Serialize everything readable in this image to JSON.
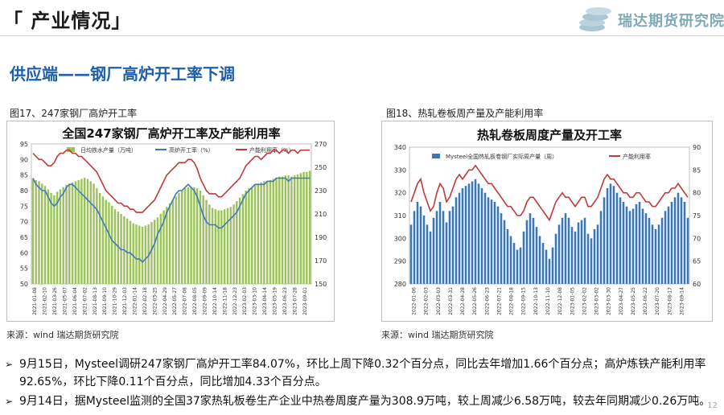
{
  "header": {
    "title": "「 产业情况」",
    "logo_text": "瑞达期货研究院"
  },
  "subtitle": "供应端——钢厂高炉开工率下调",
  "figures": [
    {
      "caption": "图17、247家钢厂高炉开工率",
      "source": "来源：wind   瑞达期货研究院"
    },
    {
      "caption": "图18、热轧卷板周产量及产能利用率",
      "source": "来源：wind   瑞达期货研究院"
    }
  ],
  "bullets": [
    "9月15日，Mysteel调研247家钢厂高炉开工率84.07%，环比上周下降0.32个百分点，同比去年增加1.66个百分点；高炉炼铁产能利用率92.65%，环比下降0.11个百分点，同比增加4.33个百分点。",
    "9月14日，据Mysteel监测的全国37家热轧板卷生产企业中热卷周度产量为308.9万吨，较上周减少6.58万吨，较去年同期减少0.26万吨。"
  ],
  "page_number": "12",
  "colors": {
    "bar_green": "#9bc35a",
    "line_blue": "#3e7ab8",
    "line_red": "#c0393b",
    "bar_blue": "#3c78b4",
    "title_blue": "#1f5fa8"
  },
  "chart_data": [
    {
      "type": "bar",
      "title": "全国247家钢厂高炉开工率及产能利用率",
      "legend": [
        "日均铁水产量（万吨）",
        "高炉开工率（%）",
        "产能利用率（%）"
      ],
      "x_tick_labels": [
        "2021-01-08",
        "2021-02-10",
        "2021-03-26",
        "2021-05-07",
        "2021-06-04",
        "2021-07-02",
        "2021-08-13",
        "2021-09-10",
        "2021-10-29",
        "2021-12-03",
        "2022-01-14",
        "2022-02-18",
        "2022-03-25",
        "2022-04-29",
        "2022-05-27",
        "2022-07-08",
        "2022-08-05",
        "2022-09-09",
        "2022-10-14",
        "2022-11-18",
        "2022-12-23",
        "2023-02-03",
        "2023-03-10",
        "2023-04-14",
        "2023-05-19",
        "2023-06-23",
        "2023-07-28",
        "2023-09-01"
      ],
      "left_axis": {
        "ticks": [
          50,
          55,
          60,
          65,
          70,
          75,
          80,
          85,
          90,
          95
        ],
        "range": [
          50,
          95
        ]
      },
      "right_axis": {
        "ticks": [
          150,
          170,
          190,
          210,
          230,
          250,
          270
        ],
        "range": [
          150,
          270
        ]
      },
      "series": [
        {
          "name": "日均铁水产量（万吨）",
          "axis": "right",
          "kind": "bar",
          "values": [
            240,
            239,
            238,
            236,
            234,
            231,
            228,
            226,
            229,
            231,
            233,
            235,
            236,
            237,
            238,
            239,
            240,
            241,
            240,
            238,
            236,
            232,
            228,
            225,
            222,
            220,
            217,
            214,
            212,
            210,
            208,
            206,
            204,
            202,
            201,
            200,
            199,
            200,
            201,
            203,
            205,
            207,
            210,
            213,
            216,
            219,
            222,
            225,
            228,
            230,
            232,
            233,
            233,
            233,
            232,
            230,
            226,
            222,
            218,
            215,
            214,
            213,
            213,
            214,
            215,
            216,
            218,
            221,
            224,
            227,
            230,
            232,
            233,
            235,
            236,
            237,
            238,
            238,
            239,
            240,
            241,
            242,
            242,
            243,
            243,
            242,
            243,
            244,
            245,
            246,
            246,
            247
          ]
        },
        {
          "name": "高炉开工率（%）",
          "axis": "left",
          "kind": "line",
          "values": [
            84,
            82,
            81,
            80,
            80,
            78,
            76,
            75,
            76,
            78,
            79,
            81,
            82,
            82,
            81,
            80,
            79,
            78,
            77,
            76,
            75,
            74,
            72,
            70,
            68,
            66,
            64,
            63,
            62,
            61,
            61,
            60,
            60,
            59,
            58,
            58,
            57,
            58,
            59,
            61,
            63,
            66,
            68,
            70,
            73,
            75,
            77,
            79,
            80,
            80,
            81,
            82,
            81,
            80,
            78,
            75,
            72,
            70,
            69,
            69,
            69,
            68,
            68,
            69,
            70,
            71,
            72,
            73,
            75,
            77,
            79,
            80,
            81,
            82,
            82,
            82,
            82,
            83,
            83,
            83,
            84,
            84,
            84,
            84,
            83,
            84,
            84,
            84,
            84,
            84,
            84,
            84
          ]
        },
        {
          "name": "产能利用率（%）",
          "axis": "left",
          "kind": "line",
          "values": [
            92,
            91,
            90,
            90,
            89,
            88,
            88,
            89,
            91,
            92,
            92,
            93,
            93,
            92,
            92,
            91,
            91,
            90,
            89,
            88,
            87,
            86,
            84,
            82,
            80,
            79,
            78,
            77,
            76,
            76,
            75,
            75,
            74,
            74,
            73,
            73,
            73,
            74,
            75,
            76,
            77,
            79,
            81,
            83,
            85,
            86,
            87,
            88,
            89,
            89,
            89,
            90,
            90,
            89,
            87,
            84,
            82,
            80,
            79,
            79,
            79,
            78,
            78,
            79,
            80,
            81,
            82,
            83,
            84,
            86,
            88,
            89,
            90,
            91,
            91,
            90,
            91,
            92,
            92,
            93,
            93,
            92,
            93,
            93,
            92,
            93,
            93,
            92,
            93,
            93,
            93,
            93
          ]
        }
      ]
    },
    {
      "type": "bar",
      "title": "热轧卷板周度产量及开工率",
      "legend": [
        "Mysteel全国热轧板卷钢厂实际周产量（周）",
        "产能利用率"
      ],
      "x_tick_labels": [
        "2022-01-06",
        "2022-02-03",
        "2022-03-03",
        "2022-03-31",
        "2022-04-28",
        "2022-05-26",
        "2022-06-23",
        "2022-07-21",
        "2022-08-18",
        "2022-09-15",
        "2022-10-13",
        "2022-11-10",
        "2022-12-08",
        "2023-01-05",
        "2023-02-02",
        "2023-03-02",
        "2023-03-30",
        "2023-04-27",
        "2023-05-25",
        "2023-06-22",
        "2023-07-20",
        "2023-08-17",
        "2023-09-14"
      ],
      "left_axis": {
        "ticks": [
          280,
          290,
          300,
          310,
          320,
          330,
          340
        ],
        "range": [
          280,
          340
        ]
      },
      "right_axis": {
        "ticks": [
          60,
          65,
          70,
          75,
          80,
          85,
          90
        ],
        "range": [
          60,
          90
        ]
      },
      "series": [
        {
          "name": "Mysteel全国热轧板卷钢厂实际周产量（周）",
          "axis": "left",
          "kind": "bar",
          "values": [
            306,
            312,
            316,
            314,
            310,
            306,
            303,
            309,
            312,
            316,
            312,
            307,
            312,
            314,
            318,
            320,
            322,
            323,
            324,
            325,
            326,
            324,
            322,
            320,
            318,
            317,
            316,
            314,
            311,
            308,
            304,
            301,
            298,
            295,
            296,
            303,
            308,
            311,
            309,
            305,
            301,
            298,
            295,
            291,
            296,
            302,
            306,
            309,
            311,
            309,
            305,
            303,
            307,
            308,
            309,
            302,
            300,
            304,
            306,
            312,
            318,
            322,
            324,
            323,
            320,
            318,
            316,
            314,
            312,
            313,
            315,
            316,
            313,
            311,
            309,
            306,
            304,
            306,
            309,
            312,
            314,
            316,
            318,
            320,
            318,
            316,
            309
          ]
        },
        {
          "name": "产能利用率",
          "axis": "right",
          "kind": "line",
          "values": [
            78,
            80,
            82,
            83,
            80,
            78,
            76,
            77,
            80,
            82,
            81,
            78,
            79,
            81,
            83,
            84,
            83,
            84,
            85,
            85,
            86,
            85,
            84,
            83,
            82,
            82,
            81,
            80,
            79,
            78,
            77,
            77,
            76,
            75,
            75,
            76,
            78,
            79,
            79,
            78,
            77,
            76,
            75,
            74,
            76,
            78,
            79,
            80,
            79,
            79,
            78,
            77,
            78,
            79,
            79,
            77,
            77,
            78,
            79,
            81,
            83,
            84,
            83,
            83,
            82,
            81,
            80,
            80,
            79,
            79,
            80,
            80,
            79,
            78,
            78,
            77,
            77,
            78,
            79,
            80,
            80,
            81,
            81,
            82,
            81,
            80,
            79
          ]
        }
      ]
    }
  ]
}
